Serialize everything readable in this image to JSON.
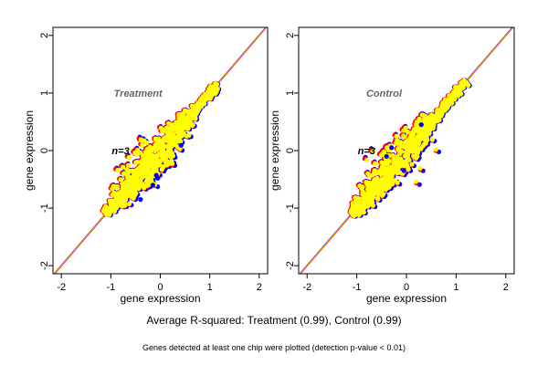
{
  "chart_data": [
    {
      "type": "scatter",
      "title": "Treatment",
      "annotation": "n=3",
      "xlabel": "gene expression",
      "ylabel": "gene expression",
      "xlim": [
        -2.17,
        2.17
      ],
      "ylim": [
        -2.14,
        2.14
      ],
      "xticks": [
        "-2",
        "-1",
        "0",
        "1",
        "2"
      ],
      "yticks": [
        "-2",
        "-1",
        "0",
        "1",
        "2"
      ],
      "reference_line": "y = x",
      "line_colors": [
        "#ff0000",
        "#0000ff",
        "#ffa500"
      ],
      "series_colors": {
        "replicate_a": "#0000ff",
        "replicate_b": "#ff0000",
        "mean": "#ffff00"
      },
      "cloud": {
        "x_range": [
          -1.1,
          1.15
        ],
        "spread": 0.12
      },
      "outliers": [
        [
          0.42,
          0.09
        ],
        [
          -0.4,
          -0.85
        ],
        [
          -0.15,
          -0.6
        ],
        [
          -0.05,
          -0.48
        ],
        [
          -0.08,
          -0.43
        ]
      ]
    },
    {
      "type": "scatter",
      "title": "Control",
      "annotation": "n=3",
      "xlabel": "gene expression",
      "ylabel": "gene expression",
      "xlim": [
        -2.17,
        2.17
      ],
      "ylim": [
        -2.14,
        2.14
      ],
      "xticks": [
        "-2",
        "-1",
        "0",
        "1",
        "2"
      ],
      "yticks": [
        "-2",
        "-1",
        "0",
        "1",
        "2"
      ],
      "reference_line": "y = x",
      "line_colors": [
        "#ff0000",
        "#0000ff",
        "#ffa500"
      ],
      "series_colors": {
        "replicate_a": "#0000ff",
        "replicate_b": "#ff0000",
        "mean": "#ffff00"
      },
      "cloud": {
        "x_range": [
          -1.1,
          1.2
        ],
        "spread": 0.12
      },
      "outliers": [
        [
          -0.3,
          0.05
        ],
        [
          -0.05,
          -0.35
        ],
        [
          -0.4,
          -0.1
        ],
        [
          0.3,
          0.45
        ]
      ]
    }
  ],
  "footer": {
    "summary": "Average R-squared: Treatment (0.99), Control (0.99)",
    "note": "Genes detected at least one chip were plotted (detection p-value < 0.01)"
  }
}
